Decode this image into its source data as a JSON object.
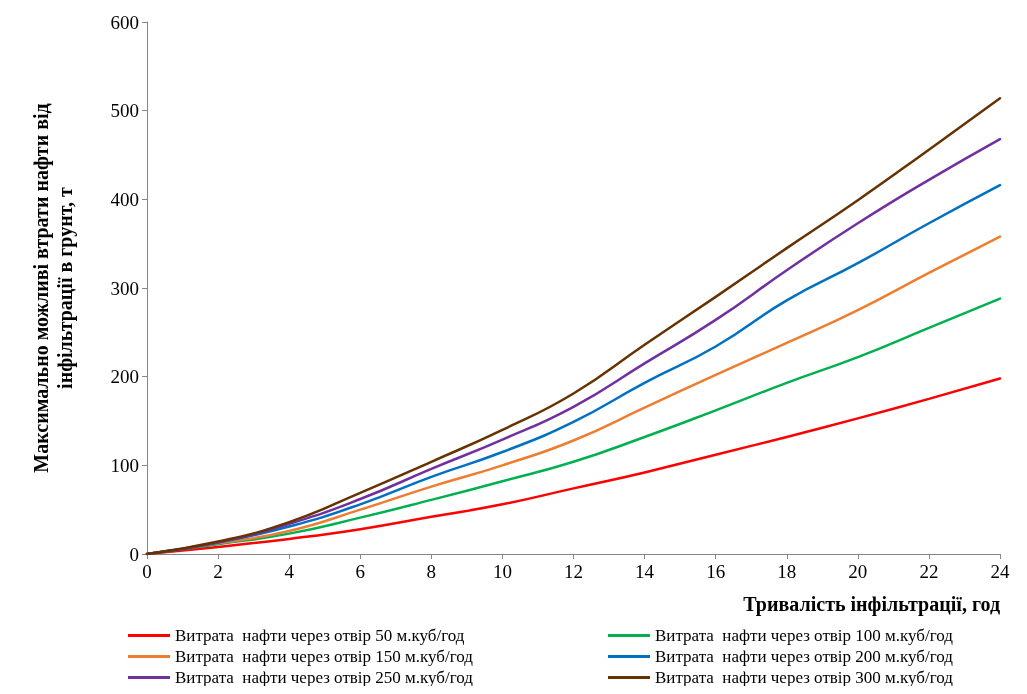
{
  "chart_data": {
    "type": "line",
    "xlabel": "Тривалість інфільтрації, год",
    "ylabel": "Максимально можливі втрати нафти від\nінфільтрації в грунт, т",
    "x": [
      0,
      2,
      4,
      6,
      8,
      10,
      12,
      14,
      16,
      18,
      20,
      22,
      24
    ],
    "series": [
      {
        "name": "Витрата  нафти через отвір 50 м.куб/год",
        "color": "#ff0000",
        "values": [
          0,
          8,
          17,
          28,
          42,
          56,
          74,
          92,
          112,
          132,
          153,
          175,
          198
        ]
      },
      {
        "name": "Витрата  нафти через отвір 100 м.куб/год",
        "color": "#00b050",
        "values": [
          0,
          11,
          23,
          41,
          61,
          82,
          104,
          132,
          162,
          193,
          222,
          255,
          288
        ]
      },
      {
        "name": "Витрата  нафти через отвір 150 м.куб/год",
        "color": "#ed7d31",
        "values": [
          0,
          12,
          26,
          50,
          76,
          100,
          128,
          165,
          202,
          238,
          275,
          317,
          358
        ]
      },
      {
        "name": "Витрата  нафти через отвір 200 м.куб/год",
        "color": "#0070c0",
        "values": [
          0,
          13,
          31,
          56,
          87,
          115,
          149,
          193,
          234,
          286,
          328,
          373,
          416
        ]
      },
      {
        "name": "Витрата  нафти через отвір 250 м.куб/год",
        "color": "#7030a0",
        "values": [
          0,
          13,
          34,
          62,
          96,
          129,
          166,
          215,
          264,
          320,
          373,
          422,
          468
        ]
      },
      {
        "name": "Витрата  нафти через отвір 300 м.куб/год",
        "color": "#663300",
        "values": [
          0,
          14,
          36,
          69,
          104,
          140,
          181,
          236,
          290,
          345,
          399,
          456,
          514
        ]
      }
    ],
    "xlim": [
      0,
      24
    ],
    "xticks": [
      0,
      2,
      4,
      6,
      8,
      10,
      12,
      14,
      16,
      18,
      20,
      22,
      24
    ],
    "ylim": [
      0,
      600
    ],
    "yticks": [
      0,
      100,
      200,
      300,
      400,
      500,
      600
    ],
    "grid": false,
    "legend": "bottom",
    "marker": "none",
    "line_style": "solid"
  }
}
